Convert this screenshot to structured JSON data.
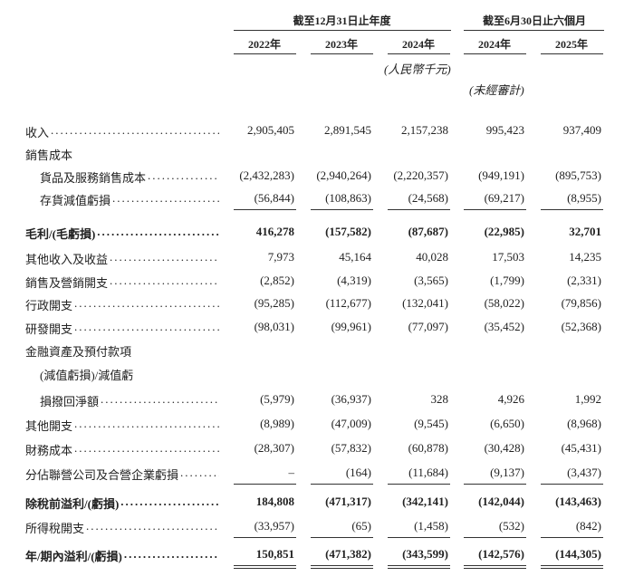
{
  "header": {
    "groups": [
      {
        "label": "截至12月31日止年度"
      },
      {
        "label": "截至6月30日止六個月"
      }
    ],
    "years": [
      "2022年",
      "2023年",
      "2024年",
      "2024年",
      "2025年"
    ],
    "unit": "(人民幣千元)",
    "unaudited": "(未經審計)"
  },
  "table": {
    "rows": [
      {
        "label": "收入",
        "values": [
          "2,905,405",
          "2,891,545",
          "2,157,238",
          "995,423",
          "937,409"
        ]
      },
      {
        "label": "銷售成本",
        "leader": false
      },
      {
        "label": "貨品及服務銷售成本",
        "indent": true,
        "values": [
          "(2,432,283)",
          "(2,940,264)",
          "(2,220,357)",
          "(949,191)",
          "(895,753)"
        ]
      },
      {
        "label": "存貨減值虧損",
        "indent": true,
        "values": [
          "(56,844)",
          "(108,863)",
          "(24,568)",
          "(69,217)",
          "(8,955)"
        ],
        "underline": "single"
      },
      {
        "label": "毛利/(毛虧損)",
        "bold": true,
        "values": [
          "416,278",
          "(157,582)",
          "(87,687)",
          "(22,985)",
          "32,701"
        ]
      },
      {
        "label": "其他收入及收益",
        "values": [
          "7,973",
          "45,164",
          "40,028",
          "17,503",
          "14,235"
        ]
      },
      {
        "label": "銷售及營銷開支",
        "values": [
          "(2,852)",
          "(4,319)",
          "(3,565)",
          "(1,799)",
          "(2,331)"
        ]
      },
      {
        "label": "行政開支",
        "values": [
          "(95,285)",
          "(112,677)",
          "(132,041)",
          "(58,022)",
          "(79,856)"
        ]
      },
      {
        "label": "研發開支",
        "values": [
          "(98,031)",
          "(99,961)",
          "(77,097)",
          "(35,452)",
          "(52,368)"
        ]
      },
      {
        "label": "金融資產及預付款項",
        "leader": false
      },
      {
        "label": "(減值虧損)/減值虧",
        "indent": true,
        "leader": false
      },
      {
        "label": "損撥回淨額",
        "indent": true,
        "values": [
          "(5,979)",
          "(36,937)",
          "328",
          "4,926",
          "1,992"
        ]
      },
      {
        "label": "其他開支",
        "values": [
          "(8,989)",
          "(47,009)",
          "(9,545)",
          "(6,650)",
          "(8,968)"
        ]
      },
      {
        "label": "財務成本",
        "values": [
          "(28,307)",
          "(57,832)",
          "(60,878)",
          "(30,428)",
          "(45,431)"
        ]
      },
      {
        "label": "分佔聯營公司及合營企業虧損",
        "values": [
          "–",
          "(164)",
          "(11,684)",
          "(9,137)",
          "(3,437)"
        ],
        "underline": "single"
      },
      {
        "label": "除稅前溢利/(虧損)",
        "bold": true,
        "values": [
          "184,808",
          "(471,317)",
          "(342,141)",
          "(142,044)",
          "(143,463)"
        ]
      },
      {
        "label": "所得稅開支",
        "values": [
          "(33,957)",
          "(65)",
          "(1,458)",
          "(532)",
          "(842)"
        ],
        "underline": "single"
      },
      {
        "label": "年/期內溢利/(虧損)",
        "bold": true,
        "values": [
          "150,851",
          "(471,382)",
          "(343,599)",
          "(142,576)",
          "(144,305)"
        ],
        "underline": "double"
      }
    ]
  }
}
